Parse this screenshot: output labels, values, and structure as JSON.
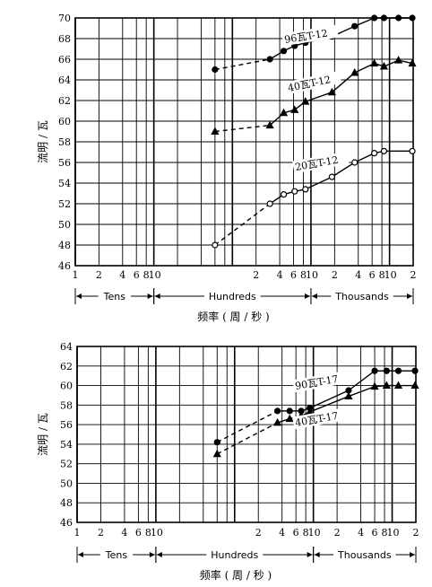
{
  "chart_data": [
    {
      "type": "line",
      "x_scale": "log",
      "xlim": [
        1,
        20000
      ],
      "ylim": [
        46,
        70
      ],
      "ylabel": "流明 / 瓦",
      "xlabel": "频率 ( 周 / 秒 )",
      "x_ticks": [
        1,
        2,
        4,
        6,
        8,
        10,
        20,
        40,
        60,
        80,
        100,
        200,
        400,
        600,
        800,
        1000,
        2000,
        4000,
        6000,
        8000,
        10000,
        20000
      ],
      "x_tick_labels": [
        "1",
        "2",
        "4",
        "6",
        "8",
        "10",
        "2",
        "4",
        "6",
        "8",
        "10",
        "2",
        "4",
        "6",
        "8",
        "10",
        "2"
      ],
      "x_tick_label_values": [
        1,
        2,
        4,
        6,
        8,
        10,
        200,
        400,
        600,
        800,
        1000,
        2000,
        4000,
        6000,
        8000,
        10000,
        20000
      ],
      "y_ticks": [
        46,
        48,
        50,
        52,
        54,
        56,
        58,
        60,
        62,
        64,
        66,
        68,
        70
      ],
      "bands": [
        {
          "label": "Tens",
          "from": 1,
          "to": 10
        },
        {
          "label": "Hundreds",
          "from": 10,
          "to": 1000
        },
        {
          "label": "Thousands",
          "from": 1000,
          "to": 20000
        }
      ],
      "grid": true,
      "series": [
        {
          "name": "96瓦T-12",
          "marker": "filled-circle",
          "dashed_segment": [
            60,
            300
          ],
          "points": [
            [
              60,
              65
            ],
            [
              300,
              66
            ],
            [
              450,
              66.8
            ],
            [
              620,
              67.3
            ],
            [
              850,
              67.6
            ],
            [
              1850,
              68.2
            ],
            [
              3600,
              69.2
            ],
            [
              6400,
              70
            ],
            [
              8500,
              70
            ],
            [
              13000,
              70
            ],
            [
              19500,
              70
            ]
          ]
        },
        {
          "name": "40瓦T-12",
          "marker": "filled-triangle",
          "dashed_segment": [
            60,
            300
          ],
          "points": [
            [
              60,
              59
            ],
            [
              300,
              59.6
            ],
            [
              450,
              60.8
            ],
            [
              620,
              61.1
            ],
            [
              850,
              61.9
            ],
            [
              1850,
              62.8
            ],
            [
              3600,
              64.7
            ],
            [
              6400,
              65.6
            ],
            [
              8500,
              65.3
            ],
            [
              13000,
              65.9
            ],
            [
              19500,
              65.6
            ]
          ]
        },
        {
          "name": "20瓦T-12",
          "marker": "open-circle",
          "dashed_segment": [
            60,
            300
          ],
          "points": [
            [
              60,
              48
            ],
            [
              300,
              52
            ],
            [
              450,
              52.9
            ],
            [
              620,
              53.2
            ],
            [
              850,
              53.4
            ],
            [
              1850,
              54.6
            ],
            [
              3600,
              56
            ],
            [
              6400,
              56.9
            ],
            [
              8500,
              57.1
            ],
            [
              19500,
              57.1
            ]
          ]
        }
      ]
    },
    {
      "type": "line",
      "x_scale": "log",
      "xlim": [
        1,
        20000
      ],
      "ylim": [
        46,
        64
      ],
      "ylabel": "流明 / 瓦",
      "xlabel": "频率 ( 周 / 秒 )",
      "x_ticks": [
        1,
        2,
        4,
        6,
        8,
        10,
        20,
        40,
        60,
        80,
        100,
        200,
        400,
        600,
        800,
        1000,
        2000,
        4000,
        6000,
        8000,
        10000,
        20000
      ],
      "x_tick_labels": [
        "1",
        "2",
        "4",
        "6",
        "8",
        "10",
        "2",
        "4",
        "6",
        "8",
        "10",
        "2",
        "4",
        "6",
        "8",
        "10",
        "2"
      ],
      "x_tick_label_values": [
        1,
        2,
        4,
        6,
        8,
        10,
        200,
        400,
        600,
        800,
        1000,
        2000,
        4000,
        6000,
        8000,
        10000,
        20000
      ],
      "y_ticks": [
        46,
        48,
        50,
        52,
        54,
        56,
        58,
        60,
        62,
        64
      ],
      "bands": [
        {
          "label": "Tens",
          "from": 1,
          "to": 10
        },
        {
          "label": "Hundreds",
          "from": 10,
          "to": 1000
        },
        {
          "label": "Thousands",
          "from": 1000,
          "to": 20000
        }
      ],
      "grid": true,
      "series": [
        {
          "name": "90瓦T-17",
          "marker": "filled-circle",
          "dashed_segment": [
            60,
            350
          ],
          "points": [
            [
              60,
              54.2
            ],
            [
              350,
              57.4
            ],
            [
              500,
              57.4
            ],
            [
              700,
              57.4
            ],
            [
              900,
              57.7
            ],
            [
              2800,
              59.5
            ],
            [
              6000,
              61.5
            ],
            [
              8500,
              61.5
            ],
            [
              12000,
              61.5
            ],
            [
              19500,
              61.5
            ]
          ]
        },
        {
          "name": "40瓦T-17",
          "marker": "filled-triangle",
          "dashed_segment": [
            60,
            350
          ],
          "points": [
            [
              60,
              53
            ],
            [
              350,
              56.2
            ],
            [
              500,
              56.6
            ],
            [
              700,
              56.9
            ],
            [
              900,
              57.3
            ],
            [
              2800,
              58.9
            ],
            [
              6000,
              59.9
            ],
            [
              8500,
              60
            ],
            [
              12000,
              60
            ],
            [
              19500,
              60
            ]
          ]
        }
      ]
    }
  ]
}
